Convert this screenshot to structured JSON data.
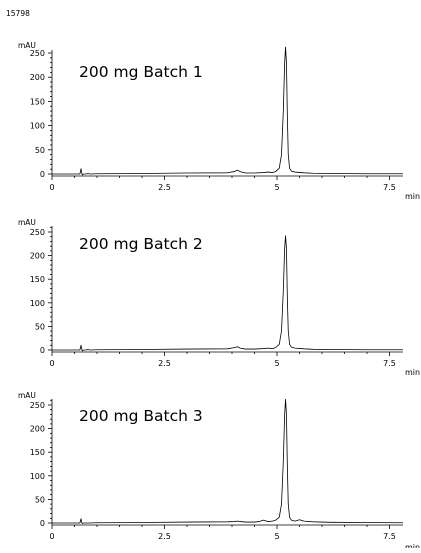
{
  "figure_id": "15798",
  "colors": {
    "trace": "#000000",
    "axis": "#000000",
    "background": "#ffffff"
  },
  "chart_data": [
    {
      "type": "line",
      "title": "200 mg Batch 1",
      "ylabel": "mAU",
      "xlabel": "min",
      "xlim": [
        0,
        7.8
      ],
      "ylim": [
        -5,
        270
      ],
      "xticks": [
        0,
        2.5,
        5,
        7.5
      ],
      "xtick_labels": [
        "0",
        "2.5",
        "5",
        "7.5"
      ],
      "yticks": [
        0,
        50,
        100,
        150,
        200,
        250
      ],
      "ytick_labels": [
        "0",
        "50",
        "100",
        "150",
        "200",
        "250"
      ],
      "grid": false,
      "series": [
        {
          "x": [
            0,
            0.62,
            0.645,
            0.66,
            0.675,
            0.7,
            0.76,
            0.8,
            0.84,
            1.0,
            2.0,
            3.0,
            3.9,
            4.05,
            4.12,
            4.18,
            4.3,
            4.5,
            4.7,
            4.8,
            4.9,
            4.97,
            5.05,
            5.1,
            5.14,
            5.17,
            5.19,
            5.21,
            5.23,
            5.25,
            5.28,
            5.32,
            5.4,
            5.6,
            5.8,
            6.2,
            7.0,
            7.8
          ],
          "y": [
            0,
            0,
            11,
            2,
            -2,
            0,
            0,
            1,
            0,
            0.5,
            1,
            2,
            2.5,
            5,
            8,
            5,
            2,
            2,
            3,
            4,
            3,
            5,
            12,
            40,
            130,
            230,
            262,
            230,
            120,
            40,
            12,
            6,
            4,
            2.5,
            1.5,
            1,
            0.5,
            0.5
          ]
        }
      ]
    },
    {
      "type": "line",
      "title": "200 mg Batch 2",
      "ylabel": "mAU",
      "xlabel": "min",
      "xlim": [
        0,
        7.8
      ],
      "ylim": [
        -5,
        270
      ],
      "xticks": [
        0,
        2.5,
        5,
        7.5
      ],
      "xtick_labels": [
        "0",
        "2.5",
        "5",
        "7.5"
      ],
      "yticks": [
        0,
        50,
        100,
        150,
        200,
        250
      ],
      "ytick_labels": [
        "0",
        "50",
        "100",
        "150",
        "200",
        "250"
      ],
      "grid": false,
      "series": [
        {
          "x": [
            0,
            0.62,
            0.645,
            0.66,
            0.675,
            0.7,
            0.76,
            0.8,
            0.84,
            1.0,
            2.0,
            3.0,
            3.9,
            4.05,
            4.12,
            4.18,
            4.3,
            4.5,
            4.7,
            4.8,
            4.9,
            4.97,
            5.05,
            5.1,
            5.14,
            5.17,
            5.19,
            5.21,
            5.23,
            5.25,
            5.28,
            5.32,
            5.4,
            5.6,
            5.8,
            6.2,
            7.0,
            7.8
          ],
          "y": [
            0,
            0,
            10,
            2,
            -2,
            0,
            0,
            1,
            0,
            0.5,
            1,
            2,
            2.5,
            5,
            7,
            4,
            2,
            2,
            3,
            4,
            3,
            5,
            12,
            40,
            125,
            215,
            242,
            215,
            110,
            40,
            12,
            6,
            4,
            2.5,
            1.5,
            1,
            0.5,
            0.5
          ]
        }
      ]
    },
    {
      "type": "line",
      "title": "200 mg Batch 3",
      "ylabel": "mAU",
      "xlabel": "min",
      "xlim": [
        0,
        7.8
      ],
      "ylim": [
        -5,
        270
      ],
      "xticks": [
        0,
        2.5,
        5,
        7.5
      ],
      "xtick_labels": [
        "0",
        "2.5",
        "5",
        "7.5"
      ],
      "yticks": [
        0,
        50,
        100,
        150,
        200,
        250
      ],
      "ytick_labels": [
        "0",
        "50",
        "100",
        "150",
        "200",
        "250"
      ],
      "grid": false,
      "series": [
        {
          "x": [
            0,
            0.62,
            0.645,
            0.66,
            0.675,
            0.7,
            0.76,
            0.8,
            1.0,
            2.0,
            3.0,
            3.9,
            4.05,
            4.12,
            4.2,
            4.3,
            4.5,
            4.6,
            4.7,
            4.8,
            4.9,
            4.97,
            5.05,
            5.1,
            5.14,
            5.17,
            5.19,
            5.21,
            5.23,
            5.25,
            5.28,
            5.32,
            5.4,
            5.5,
            5.6,
            5.8,
            6.2,
            7.0,
            7.8
          ],
          "y": [
            0,
            0,
            9,
            1,
            -1,
            0,
            0,
            0,
            0.5,
            1,
            2,
            2.5,
            3,
            4,
            3,
            2,
            2,
            3,
            6,
            3,
            4,
            6,
            12,
            40,
            130,
            230,
            262,
            230,
            120,
            40,
            12,
            6,
            4,
            7,
            4,
            2.5,
            1.5,
            1,
            0.5
          ]
        }
      ]
    }
  ]
}
